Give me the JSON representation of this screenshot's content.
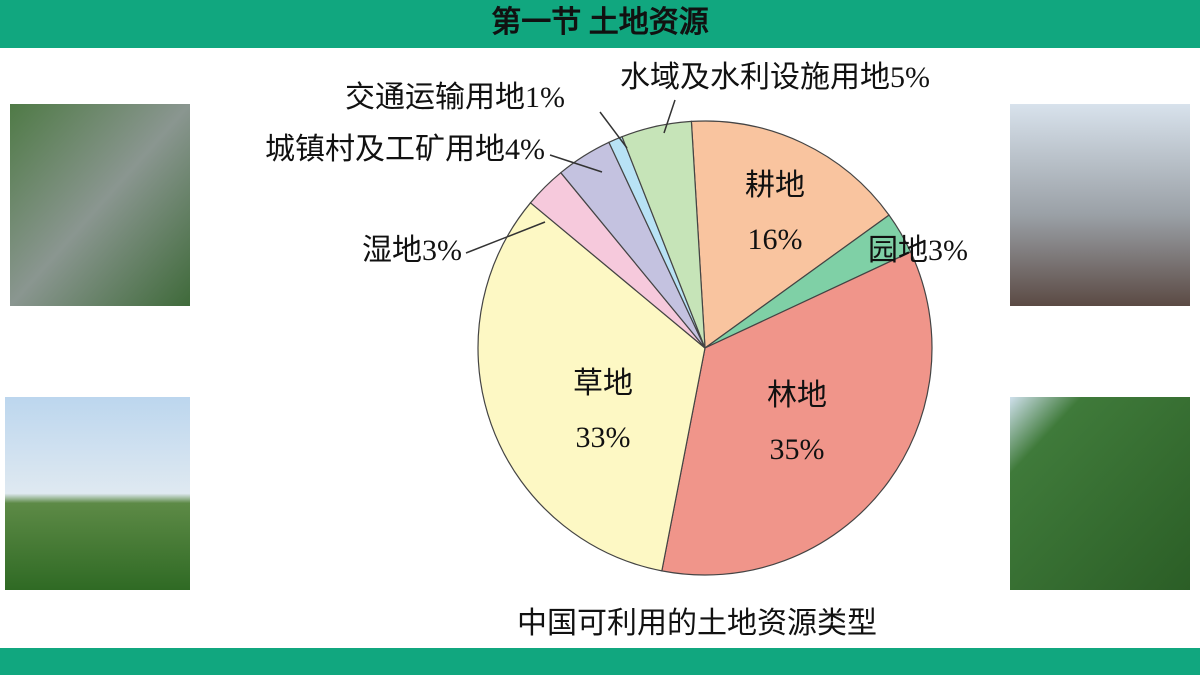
{
  "header": {
    "title": "第一节 土地资源"
  },
  "chart_data": {
    "type": "pie",
    "title": "中国可利用的土地资源类型",
    "categories": [
      "耕地",
      "园地",
      "林地",
      "草地",
      "湿地",
      "城镇村及工矿用地",
      "交通运输用地",
      "水域及水利设施用地"
    ],
    "values": [
      16,
      3,
      35,
      33,
      3,
      4,
      1,
      5
    ],
    "value_labels": [
      "16%",
      "3%",
      "35%",
      "33%",
      "3%",
      "4%",
      "1%",
      "5%"
    ],
    "colors": [
      "#f9c49f",
      "#7fd0a6",
      "#f0958a",
      "#fdf8c4",
      "#f6c9dc",
      "#c4c2e0",
      "#b8e2f5",
      "#c6e4b8"
    ]
  }
}
